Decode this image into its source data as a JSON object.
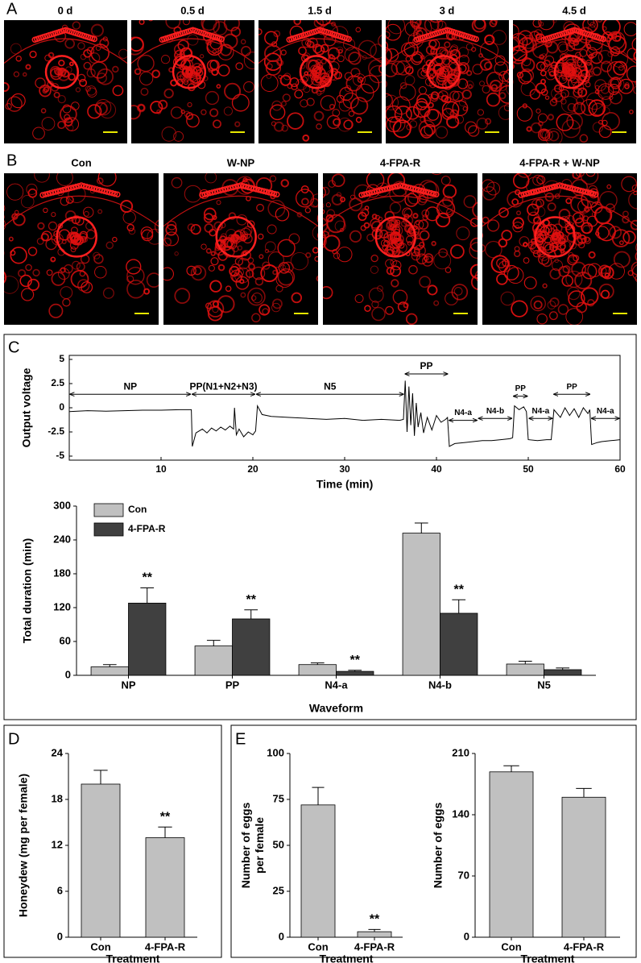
{
  "figure_labels": [
    "A",
    "B",
    "C",
    "D",
    "E"
  ],
  "panels": [
    {
      "titles": [
        "0 d",
        "0.5 d",
        "1.5 d",
        "3 d",
        "4.5 d"
      ]
    },
    {
      "titles": [
        "Con",
        "W-NP",
        "4-FPA-R",
        "4-FPA-R + W-NP"
      ]
    }
  ],
  "chart_data": [
    {
      "type": "line",
      "xlabel": "Time (min)",
      "ylabel": "Output voltage",
      "color": "#000000",
      "xlim": [
        0,
        60
      ],
      "xticks": [
        10,
        20,
        30,
        40,
        50,
        60
      ],
      "ylim": [
        -5,
        5
      ],
      "yticks": [
        5,
        2.5,
        0,
        -2.5,
        -5
      ],
      "x": [
        0,
        2,
        4,
        6,
        8,
        10,
        12,
        13.3,
        13.4,
        13.8,
        14.5,
        15,
        15.5,
        16,
        16.5,
        17,
        17.5,
        17.9,
        18,
        18.2,
        18.5,
        19,
        19.5,
        20,
        20.3,
        20.5,
        21,
        22,
        24,
        26,
        28,
        30,
        32,
        34,
        36,
        36.4,
        36.6,
        36.8,
        37,
        37.2,
        37.4,
        37.6,
        37.8,
        38,
        38.3,
        38.6,
        39,
        39.5,
        40,
        40.5,
        41,
        41.2,
        41.4,
        42,
        43,
        44,
        45,
        46,
        47,
        48,
        48.3,
        48.5,
        49,
        49.5,
        49.8,
        50,
        51,
        52,
        52.5,
        52.8,
        53.5,
        54,
        54.5,
        55,
        55.5,
        56,
        56.5,
        56.7,
        56.9,
        57.5,
        58,
        59,
        60
      ],
      "values": [
        -0.4,
        -0.3,
        -0.35,
        -0.3,
        -0.25,
        -0.25,
        -0.2,
        -0.2,
        -4,
        -2.6,
        -2.2,
        -2.6,
        -2.1,
        -2.4,
        -2,
        -2.3,
        -1.9,
        -2.2,
        0,
        -2.8,
        -2.2,
        -3,
        -2.5,
        -2.8,
        -2.4,
        0.2,
        -0.7,
        -0.9,
        -1,
        -1.1,
        -1.2,
        -1.1,
        -1.3,
        -1.2,
        -1.3,
        -1.2,
        2.8,
        -2.5,
        2.2,
        -1.8,
        1.5,
        -2.9,
        0.5,
        -2,
        -0.5,
        -2.6,
        -1,
        -2.3,
        -0.8,
        -1.5,
        -1.2,
        -1,
        -4,
        -3.7,
        -3.6,
        -3.5,
        -3.4,
        -3.4,
        -3.3,
        -3.2,
        -3.1,
        0.2,
        -0.2,
        0.1,
        -0.4,
        -3.3,
        -3.4,
        -3.3,
        -3.3,
        -0.2,
        -1,
        0,
        -0.8,
        -0.1,
        -1,
        0,
        -0.6,
        -0.2,
        -3.8,
        -3.6,
        -3.5,
        -3.4,
        -3.3
      ],
      "annotations": [
        {
          "text": "NP",
          "x": [
            0,
            13.3
          ],
          "y": 1.4
        },
        {
          "text": "PP(N1+N2+N3)",
          "x": [
            13.3,
            20.3
          ],
          "y": 1.4
        },
        {
          "text": "N5",
          "x": [
            20.3,
            36.5
          ],
          "y": 1.4
        },
        {
          "text": "PP",
          "x": [
            36.5,
            41.3
          ],
          "y": 3.5
        },
        {
          "text": "N4-a",
          "x": [
            41.3,
            44.5
          ],
          "y": -1.3
        },
        {
          "text": "N4-b",
          "x": [
            44.5,
            48.3
          ],
          "y": -1.1
        },
        {
          "text": "PP",
          "x": [
            48.3,
            50
          ],
          "y": 1.2
        },
        {
          "text": "N4-a",
          "x": [
            50,
            52.7
          ],
          "y": -1.1
        },
        {
          "text": "PP",
          "x": [
            52.7,
            56.8
          ],
          "y": 1.4
        },
        {
          "text": "N4-a",
          "x": [
            56.8,
            60
          ],
          "y": -1.1
        }
      ]
    },
    {
      "type": "bar",
      "xlabel": "Waveform",
      "ylabel": "Total duration (min)",
      "categories": [
        "NP",
        "PP",
        "N4-a",
        "N4-b",
        "N5"
      ],
      "ylim": [
        0,
        300
      ],
      "yticks": [
        0,
        60,
        120,
        180,
        240,
        300
      ],
      "legend": "top-left",
      "series": [
        {
          "name": "Con",
          "color": "#c0c0c0",
          "values": [
            15,
            52,
            19,
            252,
            20
          ],
          "errors": [
            4,
            10,
            3,
            18,
            5
          ],
          "annotations": [
            null,
            null,
            null,
            null,
            null
          ]
        },
        {
          "name": "4-FPA-R",
          "color": "#404040",
          "values": [
            128,
            100,
            7,
            110,
            10
          ],
          "errors": [
            27,
            16,
            2,
            24,
            3
          ],
          "annotations": [
            "**",
            "**",
            "**",
            "**",
            null
          ]
        }
      ]
    },
    {
      "type": "bar",
      "xlabel": "Treatment",
      "ylabel": "Honeydew (mg per female)",
      "color": "#c0c0c0",
      "categories": [
        "Con",
        "4-FPA-R"
      ],
      "values": [
        20,
        13
      ],
      "errors": [
        1.8,
        1.4
      ],
      "annotations": [
        null,
        "**"
      ],
      "ylim": [
        0,
        24
      ],
      "yticks": [
        0,
        6,
        12,
        18,
        24
      ]
    },
    {
      "type": "bar",
      "xlabel": "Treatment",
      "ylabel": [
        "Number of eggs",
        "per female"
      ],
      "color": "#c0c0c0",
      "categories": [
        "Con",
        "4-FPA-R"
      ],
      "values": [
        72,
        3
      ],
      "errors": [
        9.5,
        1.2
      ],
      "annotations": [
        null,
        "**"
      ],
      "ylim": [
        0,
        100
      ],
      "yticks": [
        0,
        25,
        50,
        75,
        100
      ]
    },
    {
      "type": "bar",
      "xlabel": "Treatment",
      "ylabel": "Number of eggs",
      "color": "#c0c0c0",
      "categories": [
        "Con",
        "4-FPA-R"
      ],
      "values": [
        189,
        160
      ],
      "errors": [
        7,
        10
      ],
      "annotations": [
        null,
        null
      ],
      "ylim": [
        0,
        210
      ],
      "yticks": [
        0,
        70,
        140,
        210
      ]
    }
  ]
}
